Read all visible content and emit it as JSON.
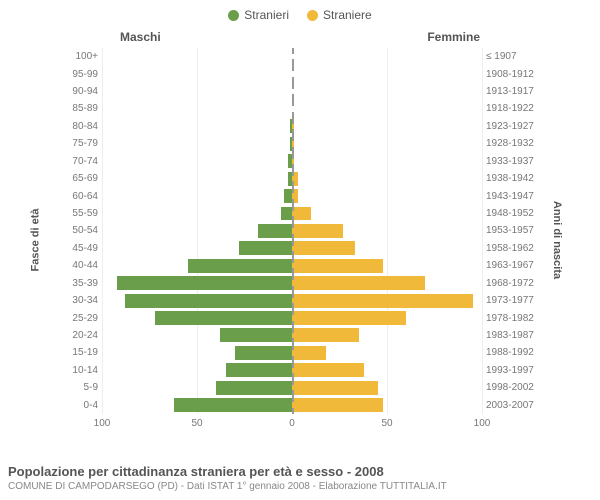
{
  "legend": {
    "male": {
      "label": "Stranieri",
      "color": "#6b9e4b"
    },
    "female": {
      "label": "Straniere",
      "color": "#f0b93a"
    }
  },
  "headers": {
    "left": "Maschi",
    "right": "Femmine"
  },
  "axes": {
    "y_left_title": "Fasce di età",
    "y_right_title": "Anni di nascita",
    "x_ticks": [
      100,
      50,
      0,
      50,
      100
    ],
    "x_max": 100
  },
  "chart": {
    "type": "population-pyramid",
    "bar_fill_male": "#6b9e4b",
    "bar_fill_female": "#f0b93a",
    "grid_color": "#eeeeee",
    "center_line_color": "#999999",
    "background": "#ffffff",
    "label_fontsize": 10,
    "rows": [
      {
        "age": "100+",
        "birth": "≤ 1907",
        "m": 0,
        "f": 0
      },
      {
        "age": "95-99",
        "birth": "1908-1912",
        "m": 0,
        "f": 0
      },
      {
        "age": "90-94",
        "birth": "1913-1917",
        "m": 0,
        "f": 0
      },
      {
        "age": "85-89",
        "birth": "1918-1922",
        "m": 0,
        "f": 0
      },
      {
        "age": "80-84",
        "birth": "1923-1927",
        "m": 1,
        "f": 1
      },
      {
        "age": "75-79",
        "birth": "1928-1932",
        "m": 1,
        "f": 1
      },
      {
        "age": "70-74",
        "birth": "1933-1937",
        "m": 2,
        "f": 1
      },
      {
        "age": "65-69",
        "birth": "1938-1942",
        "m": 2,
        "f": 3
      },
      {
        "age": "60-64",
        "birth": "1943-1947",
        "m": 4,
        "f": 3
      },
      {
        "age": "55-59",
        "birth": "1948-1952",
        "m": 6,
        "f": 10
      },
      {
        "age": "50-54",
        "birth": "1953-1957",
        "m": 18,
        "f": 27
      },
      {
        "age": "45-49",
        "birth": "1958-1962",
        "m": 28,
        "f": 33
      },
      {
        "age": "40-44",
        "birth": "1963-1967",
        "m": 55,
        "f": 48
      },
      {
        "age": "35-39",
        "birth": "1968-1972",
        "m": 92,
        "f": 70
      },
      {
        "age": "30-34",
        "birth": "1973-1977",
        "m": 88,
        "f": 95
      },
      {
        "age": "25-29",
        "birth": "1978-1982",
        "m": 72,
        "f": 60
      },
      {
        "age": "20-24",
        "birth": "1983-1987",
        "m": 38,
        "f": 35
      },
      {
        "age": "15-19",
        "birth": "1988-1992",
        "m": 30,
        "f": 18
      },
      {
        "age": "10-14",
        "birth": "1993-1997",
        "m": 35,
        "f": 38
      },
      {
        "age": "5-9",
        "birth": "1998-2002",
        "m": 40,
        "f": 45
      },
      {
        "age": "0-4",
        "birth": "2003-2007",
        "m": 62,
        "f": 48
      }
    ]
  },
  "footer": {
    "title": "Popolazione per cittadinanza straniera per età e sesso - 2008",
    "subtitle": "COMUNE DI CAMPODARSEGO (PD) - Dati ISTAT 1° gennaio 2008 - Elaborazione TUTTITALIA.IT"
  }
}
